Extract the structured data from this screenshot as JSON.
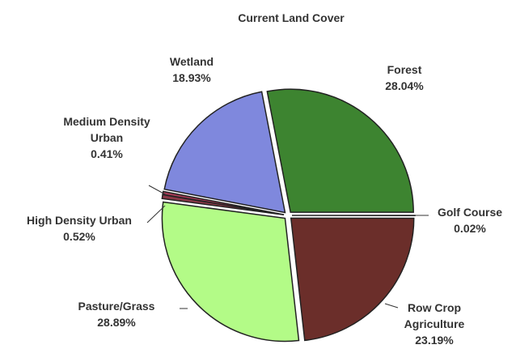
{
  "chart_data": {
    "type": "pie",
    "title": "Current Land Cover",
    "slices": [
      {
        "key": "forest",
        "label_lines": [
          "Forest",
          "28.04%"
        ],
        "value": 28.04,
        "color": "#3d8430"
      },
      {
        "key": "golf",
        "label_lines": [
          "Golf Course",
          "0.02%"
        ],
        "value": 0.02,
        "color": "#4a7a3a"
      },
      {
        "key": "rowcrop",
        "label_lines": [
          "Row Crop",
          "Agriculture",
          "23.19%"
        ],
        "value": 23.19,
        "color": "#6b2e2a"
      },
      {
        "key": "pasture",
        "label_lines": [
          "Pasture/Grass",
          "28.89%"
        ],
        "value": 28.89,
        "color": "#b3fb87"
      },
      {
        "key": "highdens",
        "label_lines": [
          "High Density Urban",
          "0.52%"
        ],
        "value": 0.52,
        "color": "#8a3848"
      },
      {
        "key": "meddens",
        "label_lines": [
          "Medium Density",
          "Urban",
          "0.41%"
        ],
        "value": 0.41,
        "color": "#a53a55"
      },
      {
        "key": "wetland",
        "label_lines": [
          "Wetland",
          "18.93%"
        ],
        "value": 18.93,
        "color": "#7f88dd"
      }
    ],
    "legend": "none"
  }
}
